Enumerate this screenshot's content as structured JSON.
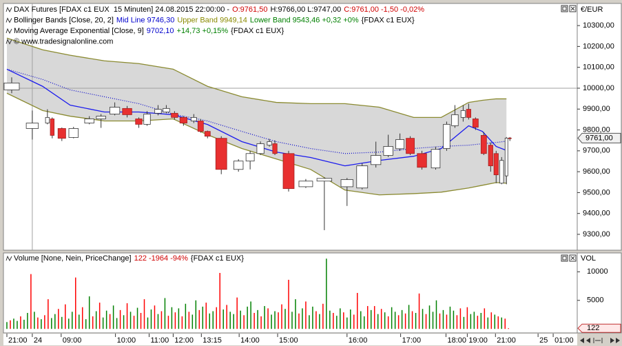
{
  "chart_data": [
    {
      "type": "candlestick",
      "legend": [
        [
          {
            "text": "DAX Futures [FDAX c1 EUX  15 Minuten] 24.08.2015 22:00:00 -",
            "color": "#000000"
          },
          {
            "text": "O:9761,50",
            "color": "#d00000"
          },
          {
            "text": "H:9766,00 L:9747,00",
            "color": "#000000"
          },
          {
            "text": "C:9761,00 -1,50 -0,02%",
            "color": "#d00000"
          }
        ],
        [
          {
            "text": "Bollinger Bands [Close, 20, 2]",
            "color": "#000000"
          },
          {
            "text": "Mid Line 9746,30",
            "color": "#0000cc"
          },
          {
            "text": "Upper Band 9949,14",
            "color": "#8a8a00"
          },
          {
            "text": "Lower Band 9543,46 +0,32 +0%",
            "color": "#008000"
          },
          {
            "text": "{FDAX c1 EUX}",
            "color": "#000000"
          }
        ],
        [
          {
            "text": "Moving Average Exponential [Close, 9]",
            "color": "#000000"
          },
          {
            "text": "9702,10",
            "color": "#0000cc"
          },
          {
            "text": "+14,73 +0,15%",
            "color": "#008000"
          },
          {
            "text": "{FDAX c1 EUX}",
            "color": "#000000"
          }
        ],
        [
          {
            "text": "© www.tradesignalonline.com",
            "color": "#000000"
          }
        ]
      ],
      "axis_unit": "€/EUR",
      "xlim": [
        -1,
        166
      ],
      "ylim": [
        9224,
        10406
      ],
      "yticks": [
        {
          "value": 9300,
          "label": "9300,00"
        },
        {
          "value": 9400,
          "label": "9400,00"
        },
        {
          "value": 9500,
          "label": "9500,00"
        },
        {
          "value": 9600,
          "label": "9600,00"
        },
        {
          "value": 9700,
          "label": "9700,00"
        },
        {
          "value": 9800,
          "label": "9800,00"
        },
        {
          "value": 9900,
          "label": "9900,00"
        },
        {
          "value": 10000,
          "label": "10000,00"
        },
        {
          "value": 10100,
          "label": "10100,00"
        },
        {
          "value": 10200,
          "label": "10200,00"
        },
        {
          "value": 10300,
          "label": "10300,00"
        }
      ],
      "hline": 10000,
      "vline": 7.4,
      "last_marker": {
        "value": 9761,
        "label": "9761,00"
      },
      "up_color": "#ffffff",
      "down_color": "#e83030",
      "x": [
        1.4,
        7.4,
        11.8,
        13.2,
        16,
        19.4,
        24,
        27.4,
        31.4,
        35,
        38.4,
        40.8,
        44,
        46.4,
        48.8,
        51.4,
        54.4,
        56.4,
        58.4,
        62.4,
        67.4,
        70.8,
        73.8,
        76.4,
        78,
        82,
        87,
        92.4,
        99,
        103.4,
        107.4,
        111,
        114.4,
        117.4,
        120.8,
        124.8,
        128,
        130.4,
        132.8,
        134.4,
        136.4,
        138.8,
        140.8,
        142.4,
        144,
        145.4,
        146.4
      ],
      "open": [
        9992,
        9807,
        9833,
        9853,
        9807,
        9764,
        9833,
        9853,
        9876,
        9903,
        9853,
        9827,
        9880,
        9886,
        9880,
        9860,
        9843,
        9843,
        9793,
        9760,
        9611,
        9651,
        9687,
        9727,
        9734,
        9687,
        9528,
        9555,
        9528,
        9522,
        9634,
        9678,
        9710,
        9760,
        9687,
        9618,
        9711,
        9820,
        9860,
        9899,
        9853,
        9774,
        9727,
        9687,
        9545,
        9580,
        9761.5
      ],
      "high": [
        10052,
        9893,
        9899,
        9860,
        9812,
        9815,
        9866,
        9876,
        9932,
        9915,
        9860,
        9890,
        9919,
        9919,
        9890,
        9866,
        9876,
        9853,
        9797,
        9770,
        9660,
        9700,
        9745,
        9757,
        9750,
        9700,
        9565,
        9572,
        9570,
        9640,
        9744,
        9777,
        9783,
        9770,
        9700,
        9720,
        9840,
        9919,
        9919,
        9926,
        9860,
        9790,
        9740,
        9700,
        9670,
        9766,
        9766
      ],
      "low": [
        9976,
        9754,
        9827,
        9760,
        9747,
        9760,
        9827,
        9810,
        9870,
        9860,
        9810,
        9820,
        9870,
        9880,
        9850,
        9820,
        9833,
        9787,
        9760,
        9588,
        9600,
        9611,
        9680,
        9720,
        9680,
        9505,
        9522,
        9320,
        9436,
        9515,
        9620,
        9670,
        9700,
        9680,
        9610,
        9610,
        9700,
        9810,
        9840,
        9850,
        9800,
        9680,
        9600,
        9545,
        9540,
        9540,
        9747
      ],
      "close": [
        10025,
        9833,
        9860,
        9774,
        9760,
        9807,
        9853,
        9866,
        9909,
        9873,
        9827,
        9876,
        9899,
        9903,
        9860,
        9833,
        9860,
        9793,
        9770,
        9611,
        9651,
        9687,
        9734,
        9744,
        9687,
        9519,
        9555,
        9568,
        9562,
        9628,
        9678,
        9721,
        9754,
        9687,
        9621,
        9707,
        9827,
        9873,
        9893,
        9860,
        9813,
        9687,
        9628,
        9585,
        9654,
        9761,
        9761
      ],
      "band_fill": "#d8d8d8",
      "indicator_x": [
        0,
        10.4,
        18.4,
        28.4,
        38.4,
        48.4,
        58.4,
        68.4,
        78.4,
        88.4,
        98.4,
        108.4,
        118.4,
        126.4,
        134.4,
        138.4,
        142.4,
        145.4
      ],
      "lines": [
        {
          "color": "#8a8a30",
          "dash": false,
          "values": [
            10240,
            10184,
            10158,
            10131,
            10118,
            10091,
            10009,
            9959,
            9932,
            9926,
            9926,
            9909,
            9860,
            9860,
            9932,
            9942,
            9949,
            9949
          ]
        },
        {
          "color": "#8a8a30",
          "dash": false,
          "values": [
            9976,
            9893,
            9866,
            9843,
            9843,
            9853,
            9777,
            9711,
            9661,
            9611,
            9512,
            9489,
            9495,
            9502,
            9522,
            9535,
            9548,
            9545
          ]
        },
        {
          "color": "#0000cc",
          "dash": true,
          "values": [
            10091,
            10042,
            9992,
            9959,
            9926,
            9876,
            9843,
            9793,
            9744,
            9711,
            9687,
            9694,
            9711,
            9721,
            9727,
            9734,
            9740,
            9746
          ]
        },
        {
          "color": "#1a1aee",
          "dash": false,
          "values": [
            10091,
            10009,
            9919,
            9886,
            9886,
            9873,
            9826,
            9744,
            9694,
            9668,
            9628,
            9654,
            9674,
            9711,
            9820,
            9793,
            9721,
            9702
          ]
        }
      ]
    },
    {
      "type": "bar",
      "legend": [
        [
          {
            "text": "Volume [None, Nein, PriceChange]",
            "color": "#000000"
          },
          {
            "text": "122 -1964 -94%",
            "color": "#d00000"
          },
          {
            "text": "{FDAX c1 EUX}",
            "color": "#000000"
          }
        ]
      ],
      "axis_unit": "VOL",
      "xlim": [
        -1,
        166
      ],
      "ylim": [
        -700,
        13300
      ],
      "yticks": [
        5000,
        10000
      ],
      "last_marker": 122,
      "xticks": [
        {
          "value": 0,
          "label": "21:00"
        },
        {
          "value": 7.4,
          "label": "24"
        },
        {
          "value": 15.8,
          "label": "09:00"
        },
        {
          "value": 31.6,
          "label": "10:00"
        },
        {
          "value": 41.4,
          "label": "11:00"
        },
        {
          "value": 48.4,
          "label": "12:00"
        },
        {
          "value": 56.6,
          "label": "13:15"
        },
        {
          "value": 67.6,
          "label": "14:00"
        },
        {
          "value": 78.8,
          "label": "15:00"
        },
        {
          "value": 99,
          "label": "16:00"
        },
        {
          "value": 114.6,
          "label": "17:00"
        },
        {
          "value": 127.8,
          "label": "18:00"
        },
        {
          "value": 134,
          "label": "19:00"
        },
        {
          "value": 142.2,
          "label": "21:00"
        },
        {
          "value": 154.6,
          "label": "25"
        },
        {
          "value": 159,
          "label": "01:00"
        }
      ],
      "x": [
        0,
        1,
        2,
        3,
        4,
        5,
        6,
        7,
        8,
        9,
        10,
        11,
        12,
        13,
        14,
        15,
        16,
        17,
        18,
        19,
        20,
        21,
        22,
        23,
        24,
        25,
        26,
        27,
        28,
        29,
        30,
        31,
        32,
        33,
        34,
        35,
        36,
        37,
        38,
        39,
        40,
        41,
        42,
        43,
        44,
        45,
        46,
        47,
        48,
        49,
        50,
        51,
        52,
        53,
        54,
        55,
        56,
        57,
        58,
        59,
        60,
        61,
        62,
        63,
        64,
        65,
        66,
        67,
        68,
        69,
        70,
        71,
        72,
        73,
        74,
        75,
        76,
        77,
        78,
        79,
        80,
        81,
        82,
        83,
        84,
        85,
        86,
        87,
        88,
        89,
        90,
        91,
        92,
        93,
        94,
        95,
        96,
        97,
        98,
        99,
        100,
        101,
        102,
        103,
        104,
        105,
        106,
        107,
        108,
        109,
        110,
        111,
        112,
        113,
        114,
        115,
        116,
        117,
        118,
        119,
        120,
        121,
        122,
        123,
        124,
        125,
        126,
        127,
        128,
        129,
        130,
        131,
        132,
        133,
        134,
        135,
        136,
        137,
        138,
        139,
        140,
        141,
        142,
        143,
        144,
        145,
        146
      ],
      "values": [
        1200,
        1500,
        1800,
        1400,
        2200,
        1600,
        2800,
        9600,
        3000,
        2000,
        1700,
        2400,
        5200,
        1900,
        2600,
        3500,
        2100,
        4300,
        1800,
        3000,
        9000,
        2500,
        3800,
        1700,
        5700,
        2200,
        3100,
        4600,
        2000,
        3200,
        2600,
        4100,
        1900,
        3300,
        2400,
        4500,
        3000,
        2300,
        3700,
        2800,
        5200,
        2000,
        3400,
        4100,
        2600,
        3100,
        5400,
        2300,
        3800,
        2900,
        3600,
        2200,
        4400,
        3000,
        2500,
        5000,
        3300,
        3900,
        4600,
        2700,
        3100,
        3800,
        9800,
        3400,
        4200,
        3000,
        2600,
        5500,
        3200,
        2400,
        3900,
        4800,
        2800,
        3300,
        2200,
        4000,
        3600,
        2500,
        3100,
        2900,
        4300,
        3500,
        8600,
        3000,
        5200,
        2700,
        3600,
        4800,
        2400,
        3900,
        3100,
        2600,
        4400,
        12300,
        3200,
        2800,
        2300,
        3600,
        2900,
        2000,
        3400,
        2500,
        6300,
        3100,
        2200,
        4000,
        3300,
        4000,
        2600,
        3500,
        2900,
        2200,
        3800,
        3000,
        2400,
        3300,
        2700,
        4200,
        3100,
        2800,
        6200,
        3500,
        2600,
        4100,
        3000,
        5000,
        2700,
        3300,
        2500,
        3900,
        3200,
        2400,
        3600,
        2100,
        3800,
        2600,
        3000,
        2300,
        2800,
        3600,
        2000,
        2900,
        2500,
        2200,
        2000,
        1800,
        122
      ],
      "colors": [
        "green",
        "red",
        "green",
        "green",
        "red",
        "green",
        "green",
        "red",
        "green",
        "red",
        "green",
        "red",
        "red",
        "green",
        "green",
        "red",
        "green",
        "red",
        "green",
        "green",
        "red",
        "green",
        "red",
        "green",
        "green",
        "red",
        "green",
        "red",
        "green",
        "green",
        "red",
        "green",
        "green",
        "red",
        "green",
        "red",
        "green",
        "red",
        "green",
        "red",
        "red",
        "green",
        "green",
        "red",
        "green",
        "red",
        "green",
        "red",
        "green",
        "red",
        "green",
        "red",
        "green",
        "red",
        "green",
        "green",
        "red",
        "green",
        "red",
        "green",
        "green",
        "red",
        "red",
        "green",
        "red",
        "green",
        "green",
        "red",
        "green",
        "red",
        "green",
        "green",
        "red",
        "green",
        "red",
        "green",
        "red",
        "green",
        "green",
        "red",
        "red",
        "green",
        "red",
        "green",
        "green",
        "red",
        "green",
        "red",
        "green",
        "green",
        "red",
        "green",
        "red",
        "green",
        "green",
        "red",
        "green",
        "green",
        "red",
        "green",
        "green",
        "red",
        "red",
        "green",
        "green",
        "red",
        "green",
        "red",
        "green",
        "red",
        "green",
        "red",
        "green",
        "green",
        "red",
        "green",
        "red",
        "green",
        "red",
        "green",
        "red",
        "green",
        "red",
        "green",
        "green",
        "green",
        "red",
        "green",
        "red",
        "green",
        "green",
        "red",
        "red",
        "green",
        "red",
        "green",
        "green",
        "red",
        "green",
        "red",
        "green",
        "red",
        "green",
        "red",
        "green",
        "red",
        "red"
      ]
    }
  ]
}
